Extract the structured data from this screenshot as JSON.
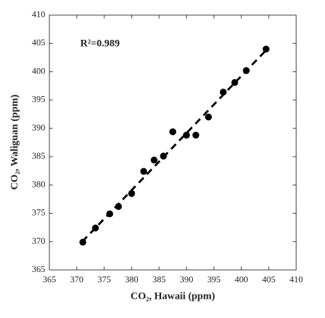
{
  "chart_data": {
    "type": "scatter",
    "xlabel": "CO₂, Hawaii (ppm)",
    "ylabel": "CO₂, Waliguan (ppm)",
    "annotation": "R²=0.989",
    "x": [
      371.1,
      373.4,
      376.0,
      377.6,
      380.0,
      382.2,
      384.1,
      385.8,
      387.5,
      390.0,
      391.7,
      394.0,
      396.7,
      398.8,
      400.9,
      404.5
    ],
    "y": [
      369.9,
      372.4,
      374.9,
      376.2,
      378.5,
      382.4,
      384.4,
      385.1,
      389.4,
      388.8,
      388.8,
      392.0,
      396.4,
      398.1,
      400.2,
      404.0
    ],
    "color": "#000000",
    "fit_line": {
      "x": [
        371,
        405
      ],
      "y": [
        370,
        404.3
      ],
      "color": "#000000",
      "dashed": true
    },
    "xlim": [
      365,
      410
    ],
    "ylim": [
      365,
      410
    ],
    "xticks": [
      365,
      370,
      375,
      380,
      385,
      390,
      395,
      400,
      405,
      410
    ],
    "yticks": [
      365,
      370,
      375,
      380,
      385,
      390,
      395,
      400,
      405,
      410
    ]
  }
}
